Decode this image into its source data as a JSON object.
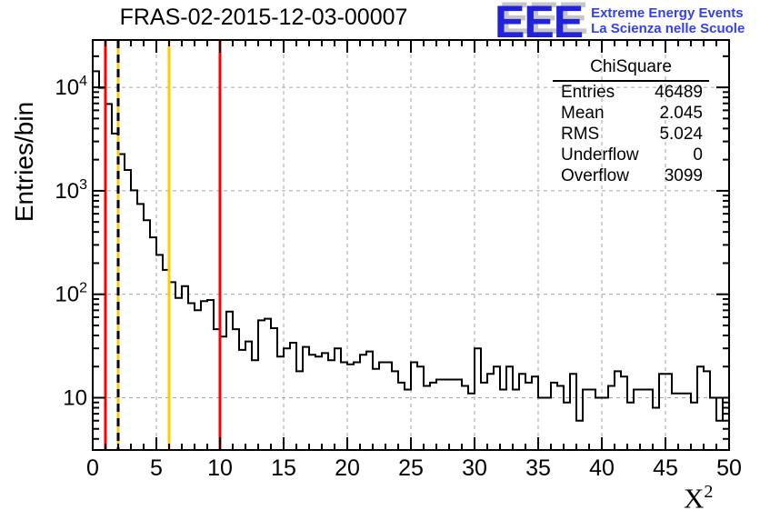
{
  "header": {
    "title": "FRAS-02-2015-12-03-00007"
  },
  "logo": {
    "acronym": "EEE",
    "line1": "Extreme Energy Events",
    "line2": "La Scienza nelle Scuole",
    "acronym_color": "#2222dd",
    "text_color": "#3340ee"
  },
  "stats": {
    "title": "ChiSquare",
    "rows": [
      {
        "label": "Entries",
        "value": "46489"
      },
      {
        "label": "Mean",
        "value": "2.045"
      },
      {
        "label": "RMS",
        "value": "5.024"
      },
      {
        "label": "Underflow",
        "value": "0"
      },
      {
        "label": "Overflow",
        "value": "3099"
      }
    ]
  },
  "chart_data": {
    "type": "bar",
    "subtype": "step-histogram",
    "title": "FRAS-02-2015-12-03-00007",
    "xlabel": {
      "base": "X",
      "exp": "2"
    },
    "ylabel": "Entries/bin",
    "xlim": [
      0,
      50
    ],
    "ylim": [
      3.1,
      29000
    ],
    "yscale": "log",
    "grid": true,
    "x_start": 0,
    "bin_width": 0.5,
    "values": [
      14300,
      9900,
      6900,
      3580,
      2265,
      1590,
      1010,
      745,
      520,
      355,
      240,
      172,
      131,
      92,
      120,
      82,
      70,
      86,
      88,
      46,
      39,
      68,
      46,
      29,
      35,
      23,
      56,
      58,
      47,
      25,
      30,
      34,
      18,
      31,
      26,
      25,
      27,
      23,
      30,
      22,
      21,
      22,
      26,
      28,
      19,
      22,
      22,
      18,
      14,
      12,
      22,
      20,
      13,
      14,
      15,
      15,
      15,
      15,
      13,
      11,
      30,
      14,
      17,
      20,
      12,
      20,
      12,
      17,
      14,
      16,
      10,
      10,
      14,
      13,
      9,
      17,
      6,
      12,
      12,
      10,
      10,
      13,
      18,
      16,
      9,
      12,
      12,
      12,
      8,
      17,
      17,
      11,
      11,
      11,
      9,
      20,
      18,
      10,
      6,
      10
    ],
    "line_color": "#000000",
    "x_major_ticks": [
      0,
      5,
      10,
      15,
      20,
      25,
      30,
      35,
      40,
      45,
      50
    ],
    "x_tick_labels": [
      "0",
      "5",
      "10",
      "15",
      "20",
      "25",
      "30",
      "35",
      "40",
      "45",
      "50"
    ],
    "y_ticks": [
      {
        "value": 10,
        "base": "10",
        "exp": ""
      },
      {
        "value": 100,
        "base": "10",
        "exp": "2"
      },
      {
        "value": 1000,
        "base": "10",
        "exp": "3"
      },
      {
        "value": 10000,
        "base": "10",
        "exp": "4"
      }
    ],
    "grid_color": "#a6a6a6",
    "marker_lines": [
      {
        "x": 1,
        "color": "#ff0000",
        "style": "solid"
      },
      {
        "x": 2,
        "color": "#ffcc00",
        "style": "solid"
      },
      {
        "x": 2,
        "color": "#000000",
        "style": "dashed"
      },
      {
        "x": 6,
        "color": "#ffcc00",
        "style": "solid"
      },
      {
        "x": 10,
        "color": "#ff0000",
        "style": "solid"
      }
    ]
  }
}
